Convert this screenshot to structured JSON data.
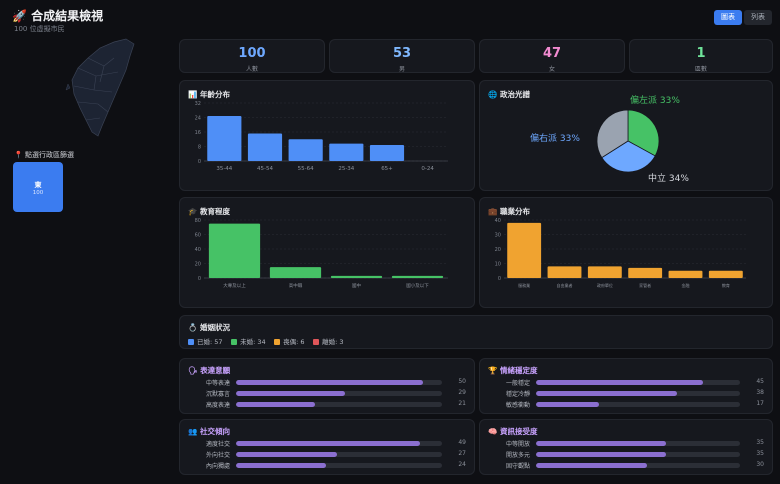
{
  "header": {
    "title": "合成結果檢視",
    "subtitle": "100 位虛擬市民"
  },
  "view_toggle": {
    "chart_label": "圖表",
    "list_label": "列表"
  },
  "map": {
    "select_label": "點選行政區篩選",
    "region_name": "東",
    "region_count": "100"
  },
  "stats": [
    {
      "value": "100",
      "label": "人數",
      "color": "#6ea8ff"
    },
    {
      "value": "53",
      "label": "男",
      "color": "#7fb8ff"
    },
    {
      "value": "47",
      "label": "女",
      "color": "#f28ad1"
    },
    {
      "value": "1",
      "label": "區數",
      "color": "#6fe39a"
    }
  ],
  "age_chart": {
    "title": "年齡分布"
  },
  "politics_chart": {
    "title": "政治光譜"
  },
  "education_chart": {
    "title": "教育程度"
  },
  "occupation_chart": {
    "title": "職業分布"
  },
  "marriage": {
    "title": "婚姻狀況",
    "items": [
      {
        "label": "已婚: 57",
        "color": "#4f8ff7"
      },
      {
        "label": "未婚: 34",
        "color": "#46c266"
      },
      {
        "label": "喪偶: 6",
        "color": "#f0a330"
      },
      {
        "label": "離婚: 3",
        "color": "#e0565a"
      }
    ]
  },
  "traits": [
    {
      "title": "表達意願",
      "rows": [
        {
          "label": "中等表達",
          "value": 50
        },
        {
          "label": "沉默寡言",
          "value": 29
        },
        {
          "label": "高度表達",
          "value": 21
        }
      ]
    },
    {
      "title": "情緒穩定度",
      "rows": [
        {
          "label": "一般穩定",
          "value": 45
        },
        {
          "label": "穩定冷靜",
          "value": 38
        },
        {
          "label": "敏感衝動",
          "value": 17
        }
      ]
    },
    {
      "title": "社交傾向",
      "rows": [
        {
          "label": "適度社交",
          "value": 49
        },
        {
          "label": "外向社交",
          "value": 27
        },
        {
          "label": "內向獨處",
          "value": 24
        }
      ]
    },
    {
      "title": "資訊接受度",
      "rows": [
        {
          "label": "中等開放",
          "value": 35
        },
        {
          "label": "開放多元",
          "value": 35
        },
        {
          "label": "固守觀點",
          "value": 30
        }
      ]
    }
  ],
  "chart_data": [
    {
      "type": "bar",
      "title": "年齡分布",
      "categories": [
        "35-44",
        "45-54",
        "55-64",
        "25-34",
        "65+",
        "0-24"
      ],
      "values": [
        31,
        19,
        15,
        12,
        11,
        0
      ],
      "ylim": [
        0,
        40
      ],
      "yticks": [
        "0",
        "8",
        "16",
        "24",
        "32"
      ],
      "color": "#4f8ff7"
    },
    {
      "type": "pie",
      "title": "政治光譜",
      "labels": [
        "偏左派 33%",
        "偏右派 33%",
        "中立 34%"
      ],
      "values": [
        33,
        33,
        34
      ],
      "colors": [
        "#46c266",
        "#6ea8ff",
        "#9aa3b0"
      ]
    },
    {
      "type": "bar",
      "title": "教育程度",
      "categories": [
        "大專及以上",
        "高中職",
        "國中",
        "國小及以下"
      ],
      "values": [
        75,
        15,
        3,
        3
      ],
      "ylim": [
        0,
        80
      ],
      "yticks": [
        "0",
        "20",
        "40",
        "60",
        "80"
      ],
      "color": "#46c266"
    },
    {
      "type": "bar",
      "title": "職業分布",
      "categories": [
        "服務業",
        "自由業者",
        "政府單位",
        "家管者",
        "金融",
        "教育"
      ],
      "values": [
        38,
        8,
        8,
        7,
        5,
        5
      ],
      "ylim": [
        0,
        40
      ],
      "yticks": [
        "0",
        "10",
        "20",
        "30",
        "40"
      ],
      "color": "#f0a330"
    }
  ]
}
